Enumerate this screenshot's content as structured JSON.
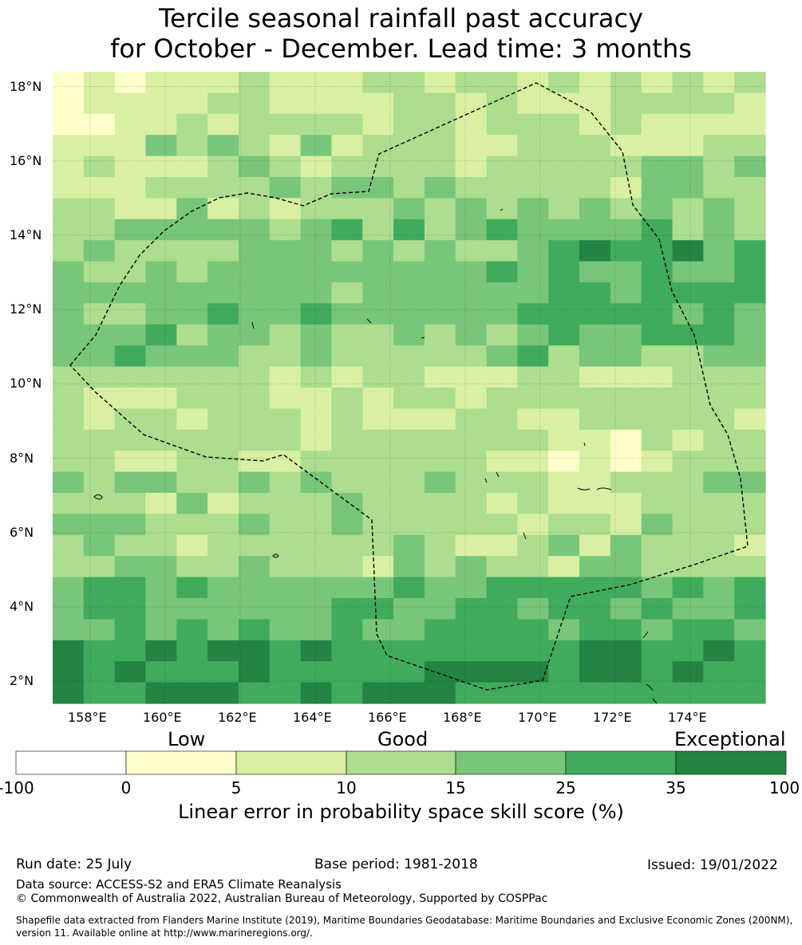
{
  "title_line1": "Tercile seasonal rainfall past accuracy",
  "title_line2": "for October - December. Lead time: 3 months",
  "map": {
    "lon_range": [
      157.0,
      176.0
    ],
    "lat_range": [
      1.4,
      18.4
    ],
    "lon_ticks": [
      "158°E",
      "160°E",
      "162°E",
      "164°E",
      "166°E",
      "168°E",
      "170°E",
      "172°E",
      "174°E"
    ],
    "lat_ticks": [
      "18°N",
      "16°N",
      "14°N",
      "12°N",
      "10°N",
      "8°N",
      "6°N",
      "4°N",
      "2°N"
    ],
    "grid": "on",
    "boundary_style": "dashed black line (EEZ)"
  },
  "legend": {
    "categories": [
      "Low",
      "Good",
      "Exceptional"
    ],
    "ticks": [
      "-100",
      "0",
      "5",
      "10",
      "15",
      "25",
      "35",
      "100"
    ],
    "colors": [
      "#ffffff",
      "#ffffcc",
      "#d9f0a3",
      "#addd8e",
      "#78c679",
      "#41ab5d",
      "#238443"
    ],
    "title": "Linear error in probability space skill score (%)"
  },
  "footer": {
    "run_date": "Run date: 25 July",
    "base_period": "Base period: 1981-2018",
    "issued": "Issued: 19/01/2022",
    "data_source": "Data source: ACCESS-S2 and ERA5 Climate Reanalysis",
    "copyright": "© Commonwealth of Australia 2022, Australian Bureau of Meteorology, Supported by COSPPac",
    "shapefile": "Shapefile data extracted from Flanders Marine Institute (2019), Maritime Boundaries Geodatabase: Maritime Boundaries and Exclusive Economic Zones (200NM), version 11. Available online at http://www.marineregions.org/."
  }
}
